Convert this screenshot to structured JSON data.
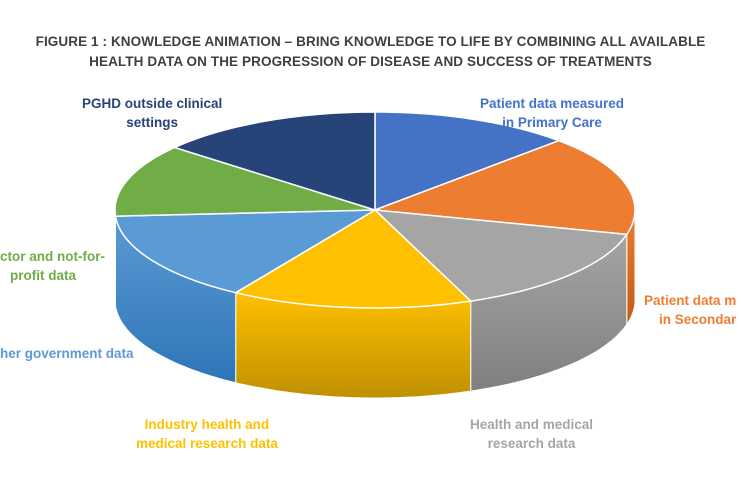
{
  "chart_data": {
    "type": "pie",
    "title_lines": [
      "FIGURE 1 : KNOWLEDGE ANIMATION – BRING KNOWLEDGE TO LIFE BY COMBINING ALL AVAILABLE",
      "HEALTH DATA ON THE PROGRESSION OF DISEASE AND SUCCESS OF TREATMENTS"
    ],
    "slices": [
      {
        "label_lines": [
          "Patient data measured",
          "in Primary Care"
        ],
        "value": 12.5,
        "color": "#4472C4",
        "side": "#2F5597"
      },
      {
        "label_lines": [
          "Patient data m",
          "in Secondar"
        ],
        "value": 16.5,
        "color": "#ED7D31",
        "side": "#C55A11"
      },
      {
        "label_lines": [
          "Health and medical",
          "research data"
        ],
        "value": 15,
        "color": "#A5A5A5",
        "side": "#7F7F7F"
      },
      {
        "label_lines": [
          "Industry health and",
          "medical research data"
        ],
        "value": 15,
        "color": "#FFC000",
        "side": "#BF9000"
      },
      {
        "label_lines": [
          "her government data"
        ],
        "value": 15,
        "color": "#5B9BD5",
        "side": "#2E75B6"
      },
      {
        "label_lines": [
          "ctor and not-for-",
          "profit data"
        ],
        "value": 12,
        "color": "#70AD47",
        "side": "#548235"
      },
      {
        "label_lines": [
          "PGHD outside clinical",
          "settings"
        ],
        "value": 14,
        "color": "#264478",
        "side": "#1B305A"
      }
    ],
    "legend": "none",
    "style": "3d-pie"
  }
}
